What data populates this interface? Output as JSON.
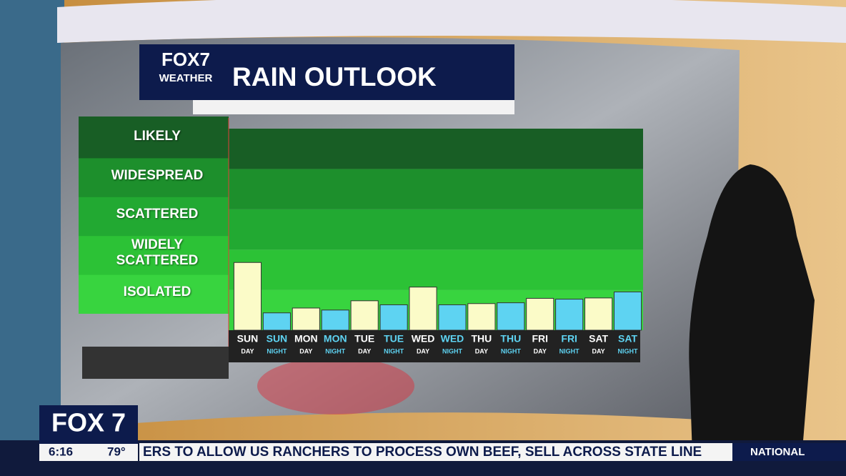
{
  "logo": {
    "station": "FOX7",
    "tag": "WEATHER"
  },
  "chart_data": {
    "type": "bar",
    "title": "RAIN OUTLOOK",
    "categories": [
      "SUN",
      "SUN",
      "MON",
      "MON",
      "TUE",
      "TUE",
      "WED",
      "WED",
      "THU",
      "THU",
      "FRI",
      "FRI",
      "SAT",
      "SAT"
    ],
    "periods": [
      "DAY",
      "NIGHT",
      "DAY",
      "NIGHT",
      "DAY",
      "NIGHT",
      "DAY",
      "NIGHT",
      "DAY",
      "NIGHT",
      "DAY",
      "NIGHT",
      "DAY",
      "NIGHT"
    ],
    "values": [
      1.68,
      0.43,
      0.55,
      0.5,
      0.73,
      0.63,
      1.07,
      0.63,
      0.66,
      0.68,
      0.79,
      0.77,
      0.8,
      0.95
    ],
    "colors": [
      "#fbfbc8",
      "#5ed3f2",
      "#fbfbc8",
      "#5ed3f2",
      "#fbfbc8",
      "#5ed3f2",
      "#fbfbc8",
      "#5ed3f2",
      "#fbfbc8",
      "#5ed3f2",
      "#fbfbc8",
      "#5ed3f2",
      "#fbfbc8",
      "#5ed3f2"
    ],
    "ylim": [
      0,
      5
    ],
    "yticks": [
      {
        "value": 0.5,
        "label": "ISOLATED"
      },
      {
        "value": 1.5,
        "label": "WIDELY SCATTERED"
      },
      {
        "value": 2.5,
        "label": "SCATTERED"
      },
      {
        "value": 3.5,
        "label": "WIDESPREAD"
      },
      {
        "value": 4.5,
        "label": "LIKELY"
      }
    ],
    "band_colors": [
      "#38d43f",
      "#2cc236",
      "#22a932",
      "#1d8f2c",
      "#185e25"
    ]
  },
  "bug": {
    "station": "FOX 7",
    "time": "6:16",
    "temp": "79°"
  },
  "ticker": {
    "headline": "ERS TO ALLOW US RANCHERS TO PROCESS OWN BEEF, SELL ACROSS STATE LINE",
    "section": "NATIONAL"
  }
}
